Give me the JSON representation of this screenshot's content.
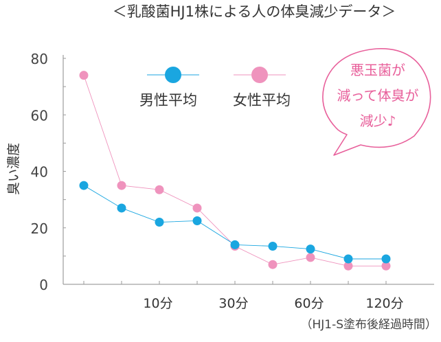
{
  "chart_data": {
    "type": "line",
    "title": "＜乳酸菌HJ1株による人の体臭減少データ＞",
    "ylabel": "臭い濃度",
    "xlabel": "（HJ1-S塗布後経過時間）",
    "ylim": [
      0,
      80
    ],
    "yticks": [
      "0",
      "20",
      "40",
      "60",
      "80"
    ],
    "x_labels": [
      "10分",
      "30分",
      "60分",
      "120分"
    ],
    "grid": false,
    "legend_position": "top",
    "series": [
      {
        "name": "男性平均",
        "color": "#1aa6e0",
        "values": [
          35,
          27,
          22,
          22.5,
          14,
          13.5,
          12.5,
          9,
          9
        ]
      },
      {
        "name": "女性平均",
        "color": "#ef93bd",
        "values": [
          74,
          35,
          33.5,
          27,
          13.5,
          7,
          9.5,
          6.5,
          6.5
        ]
      }
    ],
    "annotation": {
      "lines": [
        "悪玉菌が",
        "減って体臭が",
        "減少♪"
      ],
      "color": "#e8609b"
    }
  }
}
